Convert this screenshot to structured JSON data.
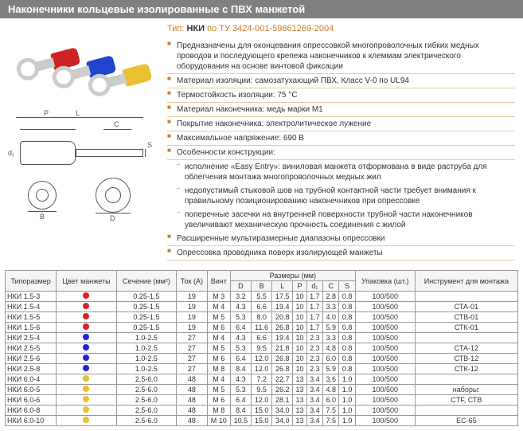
{
  "header": "Наконечники кольцевые изолированные с ПВХ манжетой",
  "type_label": "Тип:",
  "type_name": "НКИ",
  "type_std": "по ТУ 3424-001-59861269-2004",
  "specs": [
    "Предназначены для оконцевания опрессовкой многопроволочных гибких медных проводов и последующего крепежа наконечников к клеммам электрического оборудования на основе винтовой фиксации",
    "Материал изоляции: самозатухающий ПВХ, Класс V-0 по UL94",
    "Термостойкость изоляции: 75 °C",
    "Материал наконечника: медь марки М1",
    "Покрытие наконечника: электролитическое лужение",
    "Максимальное напряжение: 690 В",
    "Особенности конструкции:"
  ],
  "sub_specs": [
    "исполнение «Easy Entry»: виниловая манжета отформована в виде раструба для облегчения монтажа многопроволочных медных жил",
    "недопустимый стыковой шов на трубной контактной части требует внимания к правильному позиционированию наконечников при опрессовке",
    "поперечные засечки на внутренней поверхности трубной части наконечников увеличивают механическую прочность соединения с жилой"
  ],
  "specs_tail": [
    "Расширенные мультиразмерные диапазоны опрессовки",
    "Опрессовка проводника поверх изолирующей манжеты"
  ],
  "diagram_labels": {
    "L": "L",
    "P": "P",
    "C": "C",
    "S": "S",
    "d1": "d₁",
    "B": "B",
    "D": "D"
  },
  "table": {
    "headers": {
      "typesize": "Типоразмер",
      "color": "Цвет манжеты",
      "section": "Сечение (мм²)",
      "current": "Ток (А)",
      "screw": "Винт",
      "dims": "Размеры (мм)",
      "D": "D",
      "B": "B",
      "L": "L",
      "P": "P",
      "d1": "d₁",
      "C": "C",
      "S": "S",
      "pack": "Упаковка (шт.)",
      "tool": "Инструмент для монтажа"
    },
    "colors": {
      "red": "#d22",
      "blue": "#22d",
      "yellow": "#e8c030"
    },
    "rows": [
      {
        "t": "НКИ 1.5-3",
        "c": "red",
        "s": "0.25-1.5",
        "a": "19",
        "v": "М 3",
        "D": "3.2",
        "B": "5.5",
        "L": "17.5",
        "P": "10",
        "d1": "1.7",
        "C": "2.8",
        "S": "0.8",
        "pk": "100/500",
        "tool": ""
      },
      {
        "t": "НКИ 1.5-4",
        "c": "red",
        "s": "0.25-1.5",
        "a": "19",
        "v": "М 4",
        "D": "4.3",
        "B": "6.6",
        "L": "19.4",
        "P": "10",
        "d1": "1.7",
        "C": "3.3",
        "S": "0.8",
        "pk": "100/500",
        "tool": "СТА-01"
      },
      {
        "t": "НКИ 1.5-5",
        "c": "red",
        "s": "0.25-1.5",
        "a": "19",
        "v": "М 5",
        "D": "5.3",
        "B": "8.0",
        "L": "20.8",
        "P": "10",
        "d1": "1.7",
        "C": "4.0",
        "S": "0.8",
        "pk": "100/500",
        "tool": "СТВ-01"
      },
      {
        "t": "НКИ 1.5-6",
        "c": "red",
        "s": "0.25-1.5",
        "a": "19",
        "v": "М 6",
        "D": "6.4",
        "B": "11.6",
        "L": "26.8",
        "P": "10",
        "d1": "1.7",
        "C": "5.9",
        "S": "0.8",
        "pk": "100/500",
        "tool": "СТК-01"
      },
      {
        "t": "НКИ 2.5-4",
        "c": "blue",
        "s": "1.0-2.5",
        "a": "27",
        "v": "М 4",
        "D": "4.3",
        "B": "6.6",
        "L": "19.4",
        "P": "10",
        "d1": "2.3",
        "C": "3.3",
        "S": "0.8",
        "pk": "100/500",
        "tool": ""
      },
      {
        "t": "НКИ 2.5-5",
        "c": "blue",
        "s": "1.0-2.5",
        "a": "27",
        "v": "М 5",
        "D": "5.3",
        "B": "9.5",
        "L": "21.8",
        "P": "10",
        "d1": "2.3",
        "C": "4.8",
        "S": "0.8",
        "pk": "100/500",
        "tool": "СТА-12"
      },
      {
        "t": "НКИ 2.5-6",
        "c": "blue",
        "s": "1.0-2.5",
        "a": "27",
        "v": "М 6",
        "D": "6.4",
        "B": "12.0",
        "L": "26.8",
        "P": "10",
        "d1": "2.3",
        "C": "6.0",
        "S": "0.8",
        "pk": "100/500",
        "tool": "СТВ-12"
      },
      {
        "t": "НКИ 2.5-8",
        "c": "blue",
        "s": "1.0-2.5",
        "a": "27",
        "v": "М 8",
        "D": "8.4",
        "B": "12.0",
        "L": "26.8",
        "P": "10",
        "d1": "2.3",
        "C": "5.9",
        "S": "0.8",
        "pk": "100/500",
        "tool": "СТК-12"
      },
      {
        "t": "НКИ 6.0-4",
        "c": "yellow",
        "s": "2.5-6.0",
        "a": "48",
        "v": "М 4",
        "D": "4.3",
        "B": "7.2",
        "L": "22.7",
        "P": "13",
        "d1": "3.4",
        "C": "3.6",
        "S": "1.0",
        "pk": "100/500",
        "tool": ""
      },
      {
        "t": "НКИ 6.0-5",
        "c": "yellow",
        "s": "2.5-6.0",
        "a": "48",
        "v": "М 5",
        "D": "5.3",
        "B": "9.5",
        "L": "26.2",
        "P": "13",
        "d1": "3.4",
        "C": "4.8",
        "S": "1.0",
        "pk": "100/500",
        "tool": "наборы:"
      },
      {
        "t": "НКИ 6.0-6",
        "c": "yellow",
        "s": "2.5-6.0",
        "a": "48",
        "v": "М 6",
        "D": "6.4",
        "B": "12.0",
        "L": "28.1",
        "P": "13",
        "d1": "3.4",
        "C": "6.0",
        "S": "1.0",
        "pk": "100/500",
        "tool": "CTF, СТВ"
      },
      {
        "t": "НКИ 6.0-8",
        "c": "yellow",
        "s": "2.5-6.0",
        "a": "48",
        "v": "М 8",
        "D": "8.4",
        "B": "15.0",
        "L": "34.0",
        "P": "13",
        "d1": "3.4",
        "C": "7.5",
        "S": "1.0",
        "pk": "100/500",
        "tool": ""
      },
      {
        "t": "НКИ 6.0-10",
        "c": "yellow",
        "s": "2.5-6.0",
        "a": "48",
        "v": "М 10",
        "D": "10.5",
        "B": "15.0",
        "L": "34.0",
        "P": "13",
        "d1": "3.4",
        "C": "7.5",
        "S": "1.0",
        "pk": "100/500",
        "tool": "ЕС-65"
      }
    ]
  }
}
